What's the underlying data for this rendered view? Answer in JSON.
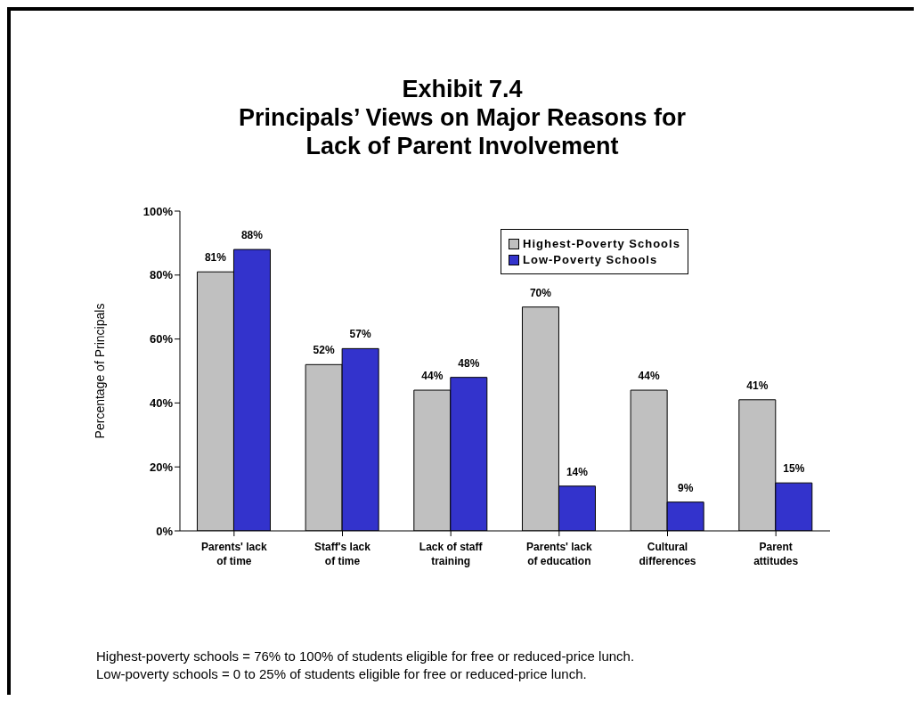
{
  "chart_data": {
    "type": "bar",
    "title": "Exhibit 7.4\nPrincipals’ Views on Major Reasons for\nLack of Parent Involvement",
    "ylabel": "Percentage of Principals",
    "categories": [
      "Parents' lack of time",
      "Staff's lack of time",
      "Lack of staff training",
      "Parents' lack of education",
      "Cultural differences",
      "Parent attitudes"
    ],
    "series": [
      {
        "name": "Highest-Poverty Schools",
        "color": "#c0c0c0",
        "values": [
          81,
          52,
          44,
          70,
          44,
          41
        ],
        "value_labels": [
          "81%",
          "52%",
          "44%",
          "70%",
          "44%",
          "41%"
        ]
      },
      {
        "name": "Low-Poverty Schools",
        "color": "#3333cc",
        "values": [
          88,
          57,
          48,
          14,
          9,
          15
        ],
        "value_labels": [
          "88%",
          "57%",
          "48%",
          "14%",
          "9%",
          "15%"
        ]
      }
    ],
    "ylim": [
      0,
      100
    ],
    "yticks": [
      {
        "value": 0,
        "label": "0%"
      },
      {
        "value": 20,
        "label": "20%"
      },
      {
        "value": 40,
        "label": "40%"
      },
      {
        "value": 60,
        "label": "60%"
      },
      {
        "value": 80,
        "label": "80%"
      },
      {
        "value": 100,
        "label": "100%"
      }
    ],
    "grid": false,
    "legend": "top right",
    "annotations": [
      "Highest-poverty schools = 76% to 100% of students eligible for free or reduced-price lunch.",
      "Low-poverty schools = 0 to 25% of students eligible for free or reduced-price lunch."
    ]
  }
}
